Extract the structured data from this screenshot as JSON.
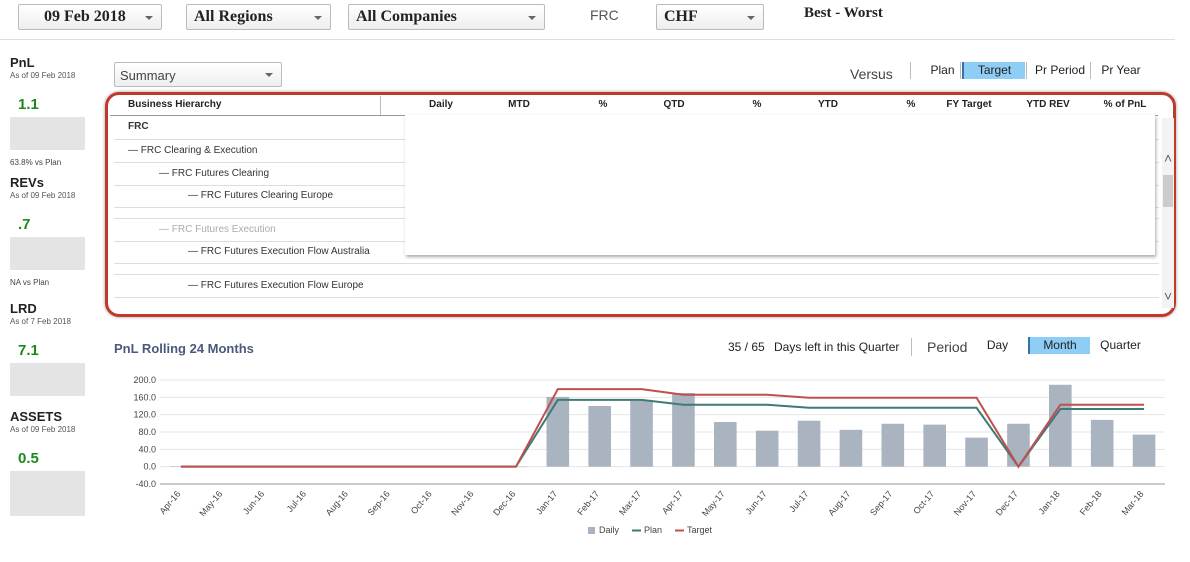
{
  "toolbar": {
    "date": "09 Feb 2018",
    "region": "All Regions",
    "company": "All Companies",
    "entity": "FRC",
    "currency": "CHF",
    "ranking": "Best - Worst"
  },
  "kpis": [
    {
      "title": "PnL",
      "as_of": "As of 09 Feb 2018",
      "value": "1.1",
      "comparison": "63.8% vs Plan"
    },
    {
      "title": "REVs",
      "as_of": "As of 09 Feb 2018",
      "value": ".7",
      "comparison": "NA vs Plan"
    },
    {
      "title": "LRD",
      "as_of": "As of 7 Feb 2018",
      "value": "7.1"
    },
    {
      "title": "ASSETS",
      "as_of": "As of 09 Feb 2018",
      "value": "0.5"
    }
  ],
  "view_select": "Summary",
  "versus": {
    "label": "Versus",
    "options": [
      "Plan",
      "Target",
      "Pr Period",
      "Pr Year"
    ],
    "selected_index": 1
  },
  "table": {
    "columns": [
      "Business Hierarchy",
      "Daily",
      "MTD",
      "%",
      "QTD",
      "%",
      "YTD",
      "%",
      "FY Target",
      "YTD REV",
      "% of PnL"
    ],
    "rows": [
      {
        "label": "FRC",
        "level": 0
      },
      {
        "label": "— FRC Clearing & Execution",
        "level": 1
      },
      {
        "label": "— FRC Futures Clearing",
        "level": 2
      },
      {
        "label": "— FRC Futures Clearing Europe",
        "level": 3
      },
      {
        "label": "— FRC Futures Execution",
        "level": 2,
        "muted": true
      },
      {
        "label": "— FRC Futures Execution Flow Australia",
        "level": 3
      },
      {
        "label": "— FRC Futures Execution Flow Europe",
        "level": 3
      }
    ]
  },
  "period": {
    "quarter_days": "35 / 65",
    "quarter_note": "Days left in this Quarter",
    "label": "Period",
    "options": [
      "Day",
      "Month",
      "Quarter"
    ],
    "selected_index": 1
  },
  "chart_data": {
    "type": "combo",
    "title": "PnL Rolling 24 Months",
    "categories": [
      "Apr-16",
      "May-16",
      "Jun-16",
      "Jul-16",
      "Aug-16",
      "Sep-16",
      "Oct-16",
      "Nov-16",
      "Dec-16",
      "Jan-17",
      "Feb-17",
      "Mar-17",
      "Apr-17",
      "May-17",
      "Jun-17",
      "Jul-17",
      "Aug-17",
      "Sep-17",
      "Oct-17",
      "Nov-17",
      "Dec-17",
      "Jan-18",
      "Feb-18",
      "Mar-18"
    ],
    "series": [
      {
        "name": "Daily",
        "type": "bar",
        "color": "#aab4c0",
        "values": [
          1,
          0,
          0,
          0,
          0,
          0,
          0,
          0,
          0,
          161,
          140,
          154,
          170,
          103,
          83,
          106,
          85,
          99,
          97,
          67,
          99,
          189,
          108,
          74
        ]
      },
      {
        "name": "Plan",
        "type": "line",
        "color": "#3d7a78",
        "values": [
          0,
          0,
          0,
          0,
          0,
          0,
          0,
          0,
          0,
          154,
          154,
          154,
          143,
          143,
          143,
          136,
          136,
          136,
          136,
          136,
          0,
          133,
          133,
          133
        ]
      },
      {
        "name": "Target",
        "type": "line",
        "color": "#c0504d",
        "values": [
          0,
          0,
          0,
          0,
          0,
          0,
          0,
          0,
          0,
          179,
          179,
          179,
          166,
          166,
          166,
          159,
          159,
          159,
          159,
          159,
          0,
          143,
          143,
          143
        ]
      }
    ],
    "ylim": [
      -40,
      200
    ],
    "yticks": [
      {
        "value": -40,
        "label": "-40.0"
      },
      {
        "value": 0,
        "label": "0.0"
      },
      {
        "value": 40,
        "label": "40.0"
      },
      {
        "value": 80,
        "label": "80.0"
      },
      {
        "value": 120,
        "label": "120.0"
      },
      {
        "value": 160,
        "label": "160.0"
      },
      {
        "value": 200,
        "label": "200.0"
      }
    ],
    "grid": true,
    "legend": "bottom"
  }
}
